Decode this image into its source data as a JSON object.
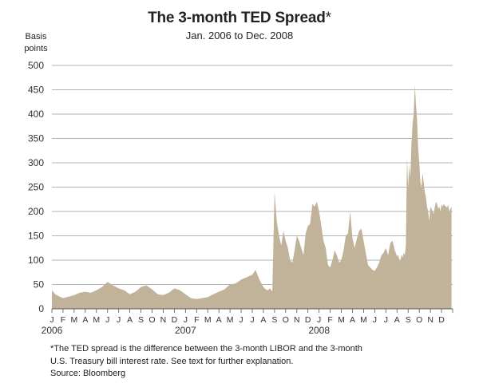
{
  "chart_data": {
    "type": "area",
    "title": "The 3-month TED Spread",
    "title_mark": "*",
    "subtitle": "Jan. 2006 to Dec. 2008",
    "ylabel_line1": "Basis",
    "ylabel_line2": "points",
    "ylim": [
      0,
      500
    ],
    "yticks": [
      0,
      50,
      100,
      150,
      200,
      250,
      300,
      350,
      400,
      450,
      500
    ],
    "grid": true,
    "fill_color": "#c0b399",
    "x_month_labels": [
      "J",
      "F",
      "M",
      "A",
      "M",
      "J",
      "J",
      "A",
      "S",
      "O",
      "N",
      "D",
      "J",
      "F",
      "M",
      "A",
      "M",
      "J",
      "J",
      "A",
      "S",
      "O",
      "N",
      "D",
      "J",
      "F",
      "M",
      "A",
      "M",
      "J",
      "J",
      "A",
      "S",
      "O",
      "N",
      "D"
    ],
    "year_labels": [
      {
        "label": "2006",
        "month_index": 0
      },
      {
        "label": "2007",
        "month_index": 12
      },
      {
        "label": "2008",
        "month_index": 24
      }
    ],
    "series": [
      {
        "x": [
          0,
          0.3,
          0.6,
          1,
          1.5,
          2,
          2.5,
          3,
          3.5,
          4,
          4.5,
          5,
          5.5,
          6,
          6.5,
          7,
          7.5,
          8,
          8.5,
          9,
          9.5,
          10,
          10.5,
          11,
          11.5,
          12,
          12.5,
          13,
          13.5,
          14,
          14.5,
          15,
          15.5,
          16,
          16.5,
          17,
          17.5,
          18,
          18.3,
          18.6,
          19,
          19.2,
          19.4,
          19.6,
          19.8,
          20,
          20.2,
          20.4,
          20.6,
          20.8,
          21,
          21.2,
          21.4,
          21.6,
          21.8,
          22,
          22.2,
          22.4,
          22.6,
          22.8,
          23,
          23.2,
          23.4,
          23.6,
          23.8,
          24,
          24.2,
          24.4,
          24.6,
          24.8,
          25,
          25.2,
          25.4,
          25.6,
          25.8,
          26,
          26.2,
          26.4,
          26.6,
          26.8,
          27,
          27.2,
          27.4,
          27.6,
          27.8,
          28,
          28.2,
          28.4,
          28.6,
          28.8,
          29,
          29.2,
          29.4,
          29.6,
          29.8,
          30,
          30.2,
          30.4,
          30.6,
          30.8,
          31,
          31.1,
          31.2,
          31.3,
          31.4,
          31.5,
          31.6,
          31.7,
          31.8,
          31.9,
          32,
          32.1,
          32.2,
          32.3,
          32.4,
          32.5,
          32.6,
          32.7,
          32.8,
          32.9,
          33,
          33.1,
          33.2,
          33.3,
          33.4,
          33.5,
          33.6,
          33.7,
          33.8,
          33.9,
          34,
          34.1,
          34.2,
          34.3,
          34.4,
          34.5,
          34.6,
          34.7,
          34.8,
          34.9,
          35,
          35.1,
          35.2,
          35.3,
          35.4,
          35.5,
          35.6,
          35.7,
          35.8,
          35.9
        ],
        "y": [
          38,
          30,
          26,
          22,
          25,
          28,
          33,
          35,
          33,
          38,
          45,
          55,
          48,
          42,
          38,
          30,
          35,
          45,
          48,
          40,
          30,
          28,
          33,
          42,
          38,
          30,
          22,
          20,
          22,
          24,
          30,
          35,
          40,
          50,
          52,
          60,
          65,
          70,
          80,
          62,
          45,
          40,
          38,
          42,
          35,
          240,
          180,
          150,
          130,
          160,
          140,
          125,
          100,
          95,
          120,
          150,
          140,
          125,
          110,
          155,
          170,
          175,
          215,
          210,
          220,
          200,
          170,
          140,
          125,
          90,
          85,
          100,
          120,
          110,
          95,
          100,
          120,
          150,
          155,
          200,
          145,
          125,
          145,
          160,
          165,
          140,
          115,
          90,
          85,
          80,
          78,
          85,
          95,
          110,
          115,
          125,
          110,
          135,
          140,
          120,
          108,
          110,
          102,
          98,
          112,
          105,
          115,
          110,
          130,
          310,
          250,
          295,
          270,
          340,
          380,
          400,
          460,
          420,
          390,
          330,
          300,
          260,
          250,
          280,
          260,
          240,
          230,
          210,
          200,
          180,
          210,
          205,
          200,
          195,
          210,
          220,
          215,
          205,
          210,
          200,
          215,
          210,
          215,
          212,
          210,
          208,
          214,
          200,
          205,
          210
        ]
      }
    ]
  },
  "footnote": {
    "line1": "*The TED spread is the difference between the 3-month LIBOR and the 3-month",
    "line2": "U.S. Treasury bill interest rate. See text for further explanation."
  },
  "source": "Source: Bloomberg"
}
